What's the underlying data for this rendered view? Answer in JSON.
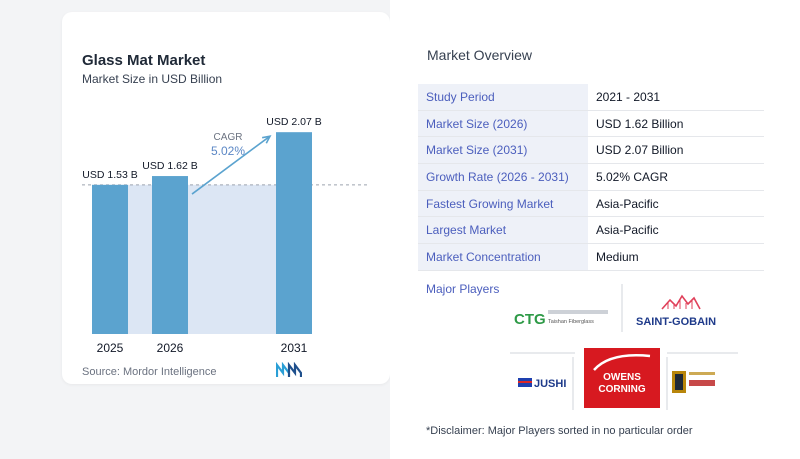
{
  "chart": {
    "title": "Glass Mat Market",
    "subtitle": "Market Size in USD Billion",
    "source": "Source:  Mordor Intelligence",
    "cagr_label": "CAGR",
    "cagr_value": "5.02%"
  },
  "chart_data": {
    "type": "bar",
    "categories": [
      "2025",
      "2026",
      "2031"
    ],
    "values": [
      1.53,
      1.62,
      2.07
    ],
    "value_labels": [
      "USD 1.53 B",
      "USD 1.62 B",
      "USD 2.07 B"
    ],
    "ylim": [
      0,
      2.4
    ],
    "reference_line": 1.53,
    "colors": {
      "bar": "#5ba3cf",
      "shade": "#dce6f4",
      "arrow": "#5ba3cf",
      "cagr": "#5b87c5"
    }
  },
  "overview": {
    "title": "Market Overview",
    "rows": [
      {
        "label": "Study Period",
        "value": "2021 - 2031"
      },
      {
        "label": "Market Size (2026)",
        "value": "USD 1.62 Billion"
      },
      {
        "label": "Market Size (2031)",
        "value": "USD 2.07 Billion"
      },
      {
        "label": "Growth Rate (2026 - 2031)",
        "value": "5.02% CAGR"
      },
      {
        "label": "Fastest Growing Market",
        "value": "Asia-Pacific"
      },
      {
        "label": "Largest Market",
        "value": "Asia-Pacific"
      },
      {
        "label": "Market Concentration",
        "value": "Medium"
      }
    ]
  },
  "players": {
    "label": "Major Players",
    "ctg": "CTG",
    "ctg_sub": "Taishan Fiberglass",
    "saint_gobain": "SAINT-GOBAIN",
    "jushi": "JUSHI",
    "owens_line1": "OWENS",
    "owens_line2": "CORNING"
  },
  "disclaimer": "*Disclaimer: Major Players sorted in no particular order"
}
